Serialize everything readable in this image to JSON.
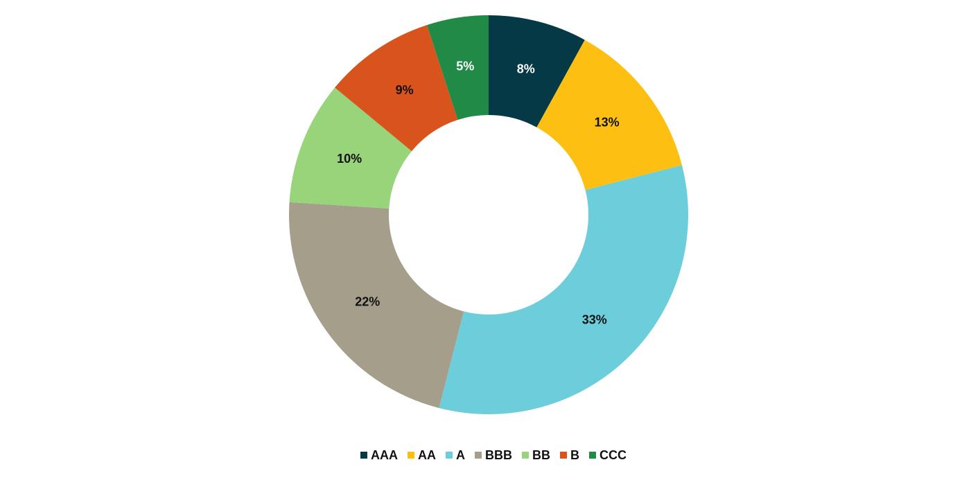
{
  "chart_data": {
    "type": "donut",
    "categories": [
      "AAA",
      "AA",
      "A",
      "BBB",
      "BB",
      "B",
      "CCC"
    ],
    "values": [
      8,
      13,
      33,
      22,
      10,
      9,
      5
    ],
    "value_labels": [
      "8%",
      "13%",
      "33%",
      "22%",
      "10%",
      "9%",
      "5%"
    ],
    "colors": [
      "#053945",
      "#fcbf12",
      "#6dcedb",
      "#a59e8b",
      "#98d479",
      "#d9541d",
      "#228a47"
    ],
    "legend": "bottom"
  }
}
